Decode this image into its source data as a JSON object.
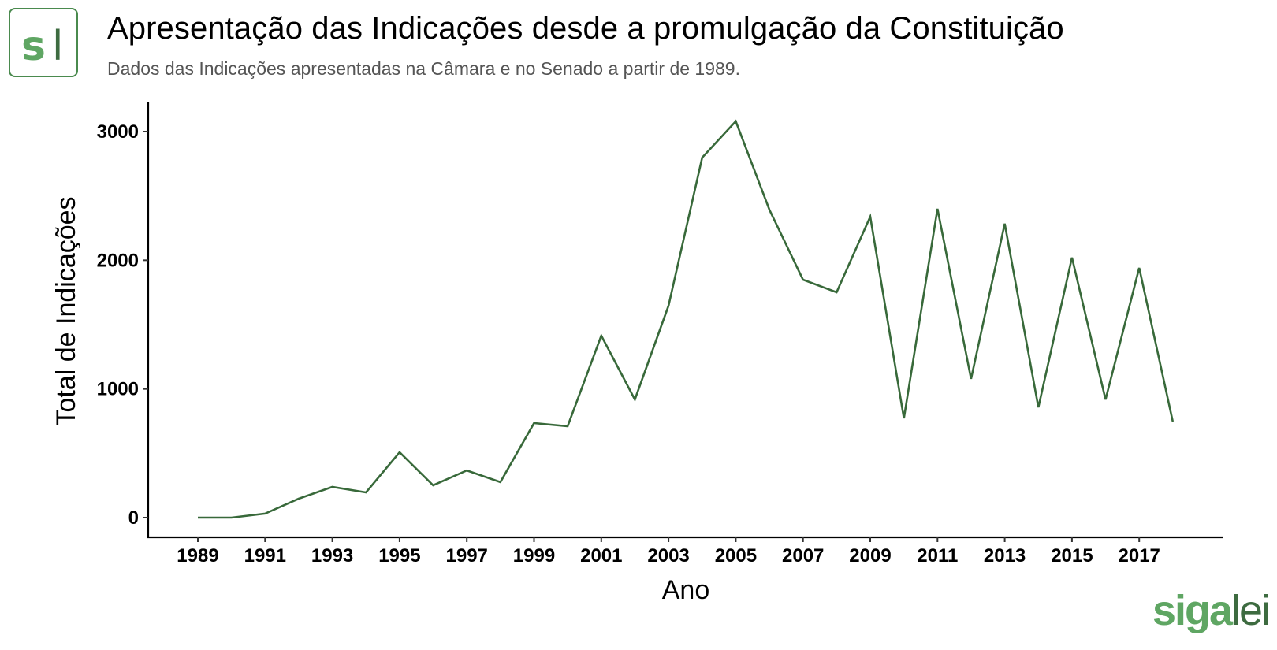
{
  "header": {
    "logo_text": "sl",
    "title": "Apresentação das Indicações desde a promulgação da Constituição",
    "subtitle": "Dados das Indicações apresentadas na Câmara e no Senado a partir de 1989."
  },
  "branding": {
    "part1": "siga",
    "part2": "lei"
  },
  "colors": {
    "line": "#38693a",
    "logo_light": "#5fa663",
    "logo_dark": "#3d6b40",
    "axis": "#000000"
  },
  "chart_data": {
    "type": "line",
    "title": "Apresentação das Indicações desde a promulgação da Constituição",
    "subtitle": "Dados das Indicações apresentadas na Câmara e no Senado a partir de 1989.",
    "xlabel": "Ano",
    "ylabel": "Total de Indicações",
    "x": [
      1989,
      1990,
      1991,
      1992,
      1993,
      1994,
      1995,
      1996,
      1997,
      1998,
      1999,
      2000,
      2001,
      2002,
      2003,
      2004,
      2005,
      2006,
      2007,
      2008,
      2009,
      2010,
      2011,
      2012,
      2013,
      2014,
      2015,
      2016,
      2017,
      2018
    ],
    "series": [
      {
        "name": "Total de Indicações",
        "values": [
          0,
          0,
          31,
          147,
          239,
          196,
          508,
          251,
          367,
          276,
          735,
          710,
          1414,
          918,
          1647,
          2798,
          3080,
          2394,
          1849,
          1751,
          2339,
          772,
          2400,
          1078,
          2284,
          857,
          2021,
          918,
          1941,
          747
        ]
      }
    ],
    "x_ticks": [
      "1989",
      "1991",
      "1993",
      "1995",
      "1997",
      "1999",
      "2001",
      "2003",
      "2005",
      "2007",
      "2009",
      "2011",
      "2013",
      "2015",
      "2017"
    ],
    "y_ticks": [
      "0",
      "1000",
      "2000",
      "3000"
    ],
    "ylim": [
      -150,
      3250
    ],
    "xlim": [
      1987.5,
      2019.5
    ],
    "grid": false,
    "legend": "none"
  }
}
